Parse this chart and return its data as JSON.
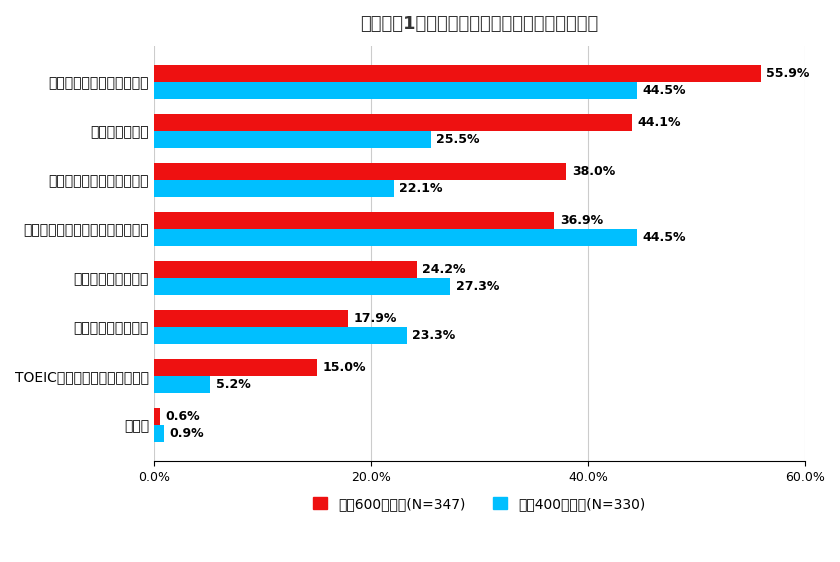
{
  "title": "【グラフ1】転職活動前の準備行動（複数回答）",
  "categories": [
    "その他",
    "TOEIC／英検取得のための学習",
    "特にしたことはない",
    "友人・知人への相談",
    "転職サイト／職業案内所への登録",
    "スキルアップのための学習",
    "業界・職種研究",
    "職務経歴書・履歴書の整理"
  ],
  "series1_label": "年収600万以上(N=347)",
  "series2_label": "年収400万以下(N=330)",
  "series1_values": [
    0.6,
    15.0,
    17.9,
    24.2,
    36.9,
    38.0,
    44.1,
    55.9
  ],
  "series2_values": [
    0.9,
    5.2,
    23.3,
    27.3,
    44.5,
    22.1,
    25.5,
    44.5
  ],
  "series1_color": "#EE1111",
  "series2_color": "#00BFFF",
  "xlim": [
    0,
    60
  ],
  "xticks": [
    0,
    20,
    40,
    60
  ],
  "xticklabels": [
    "0.0%",
    "20.0%",
    "40.0%",
    "60.0%"
  ],
  "background_color": "#FFFFFF",
  "bar_height": 0.35,
  "title_fontsize": 13,
  "label_fontsize": 9,
  "ytick_fontsize": 10,
  "legend_fontsize": 10
}
